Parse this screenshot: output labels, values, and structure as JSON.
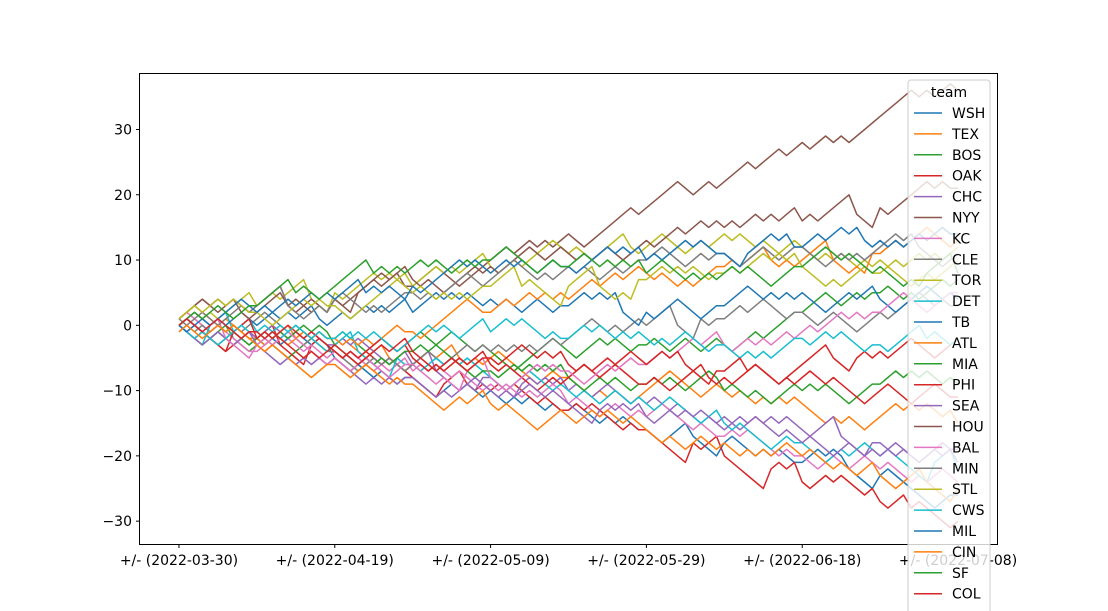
{
  "chart_data": {
    "type": "line",
    "title": "",
    "xlabel": "",
    "ylabel": "",
    "x_tick_labels": [
      "+/- (2022-03-30)",
      "+/- (2022-04-19)",
      "+/- (2022-05-09)",
      "+/- (2022-05-29)",
      "+/- (2022-06-18)",
      "+/- (2022-07-08)"
    ],
    "x_tick_days": [
      0,
      20,
      40,
      60,
      80,
      100
    ],
    "y_ticks": [
      -30,
      -20,
      -10,
      0,
      10,
      20,
      30
    ],
    "ylim": [
      -33.5,
      38.5
    ],
    "xlim": [
      -5,
      105
    ],
    "grid": false,
    "legend": {
      "title": "team",
      "placement": "upper right, extending below plot"
    },
    "colors": [
      "#1f77b4",
      "#ff7f0e",
      "#2ca02c",
      "#d62728",
      "#9467bd",
      "#8c564b",
      "#e377c2",
      "#7f7f7f",
      "#bcbd22",
      "#17becf"
    ],
    "series": [
      {
        "name": "WSH",
        "points": [
          [
            0,
            0
          ],
          [
            10,
            -2
          ],
          [
            20,
            -5
          ],
          [
            30,
            -8
          ],
          [
            40,
            -10
          ],
          [
            50,
            -13
          ],
          [
            60,
            -16
          ],
          [
            70,
            -18
          ],
          [
            80,
            -21
          ],
          [
            90,
            -23
          ],
          [
            100,
            -26
          ]
        ]
      },
      {
        "name": "TEX",
        "points": [
          [
            0,
            1
          ],
          [
            10,
            -2
          ],
          [
            20,
            -3
          ],
          [
            30,
            -6
          ],
          [
            40,
            -5
          ],
          [
            50,
            -8
          ],
          [
            60,
            -10
          ],
          [
            70,
            -10
          ],
          [
            80,
            -12
          ],
          [
            90,
            -14
          ],
          [
            100,
            -15
          ]
        ]
      },
      {
        "name": "BOS",
        "points": [
          [
            0,
            0
          ],
          [
            10,
            -3
          ],
          [
            20,
            -2
          ],
          [
            30,
            -2
          ],
          [
            40,
            -4
          ],
          [
            50,
            -4
          ],
          [
            60,
            -3
          ],
          [
            70,
            -3
          ],
          [
            80,
            2
          ],
          [
            90,
            5
          ],
          [
            100,
            7
          ]
        ]
      },
      {
        "name": "OAK",
        "points": [
          [
            0,
            0
          ],
          [
            10,
            -2
          ],
          [
            20,
            -4
          ],
          [
            30,
            -8
          ],
          [
            40,
            -10
          ],
          [
            50,
            -13
          ],
          [
            60,
            -16
          ],
          [
            70,
            -20
          ],
          [
            80,
            -24
          ],
          [
            90,
            -27
          ],
          [
            100,
            -30
          ]
        ]
      },
      {
        "name": "CHC",
        "points": [
          [
            0,
            0
          ],
          [
            10,
            -2
          ],
          [
            20,
            -3
          ],
          [
            30,
            -6
          ],
          [
            40,
            -8
          ],
          [
            50,
            -10
          ],
          [
            60,
            -12
          ],
          [
            70,
            -14
          ],
          [
            80,
            -16
          ],
          [
            90,
            -18
          ],
          [
            100,
            -19
          ]
        ]
      },
      {
        "name": "NYY",
        "points": [
          [
            0,
            1
          ],
          [
            10,
            3
          ],
          [
            20,
            4
          ],
          [
            30,
            6
          ],
          [
            40,
            10
          ],
          [
            50,
            14
          ],
          [
            60,
            18
          ],
          [
            70,
            22
          ],
          [
            80,
            28
          ],
          [
            90,
            32
          ],
          [
            100,
            36
          ]
        ]
      },
      {
        "name": "KC",
        "points": [
          [
            0,
            1
          ],
          [
            10,
            -4
          ],
          [
            20,
            -4
          ],
          [
            30,
            -7
          ],
          [
            40,
            -9
          ],
          [
            50,
            -12
          ],
          [
            60,
            -14
          ],
          [
            70,
            -17
          ],
          [
            80,
            -20
          ],
          [
            90,
            -22
          ],
          [
            100,
            -24
          ]
        ]
      },
      {
        "name": "CLE",
        "points": [
          [
            0,
            -1
          ],
          [
            10,
            1
          ],
          [
            20,
            -4
          ],
          [
            30,
            -6
          ],
          [
            40,
            -4
          ],
          [
            50,
            -2
          ],
          [
            60,
            0
          ],
          [
            70,
            1
          ],
          [
            80,
            2
          ],
          [
            90,
            2
          ],
          [
            100,
            3
          ]
        ]
      },
      {
        "name": "TOR",
        "points": [
          [
            0,
            0
          ],
          [
            10,
            3
          ],
          [
            20,
            5
          ],
          [
            30,
            6
          ],
          [
            40,
            9
          ],
          [
            50,
            11
          ],
          [
            60,
            12
          ],
          [
            70,
            14
          ],
          [
            80,
            12
          ],
          [
            90,
            10
          ],
          [
            100,
            12
          ]
        ]
      },
      {
        "name": "DET",
        "points": [
          [
            0,
            0
          ],
          [
            10,
            -1
          ],
          [
            20,
            -3
          ],
          [
            30,
            -6
          ],
          [
            40,
            -8
          ],
          [
            50,
            -10
          ],
          [
            60,
            -12
          ],
          [
            70,
            -15
          ],
          [
            80,
            -18
          ],
          [
            90,
            -20
          ],
          [
            100,
            -22
          ]
        ]
      },
      {
        "name": "TB",
        "points": [
          [
            0,
            0
          ],
          [
            10,
            0
          ],
          [
            20,
            1
          ],
          [
            30,
            2
          ],
          [
            40,
            4
          ],
          [
            50,
            3
          ],
          [
            60,
            2
          ],
          [
            70,
            3
          ],
          [
            80,
            5
          ],
          [
            90,
            4
          ],
          [
            100,
            4
          ]
        ]
      },
      {
        "name": "ATL",
        "points": [
          [
            0,
            1
          ],
          [
            10,
            -3
          ],
          [
            20,
            -2
          ],
          [
            30,
            -1
          ],
          [
            40,
            2
          ],
          [
            50,
            4
          ],
          [
            60,
            8
          ],
          [
            70,
            9
          ],
          [
            80,
            10
          ],
          [
            90,
            11
          ],
          [
            100,
            13
          ]
        ]
      },
      {
        "name": "MIA",
        "points": [
          [
            0,
            0
          ],
          [
            10,
            -2
          ],
          [
            20,
            -3
          ],
          [
            30,
            -4
          ],
          [
            40,
            -7
          ],
          [
            50,
            -8
          ],
          [
            60,
            -9
          ],
          [
            70,
            -10
          ],
          [
            80,
            -10
          ],
          [
            90,
            -9
          ],
          [
            100,
            -9
          ]
        ]
      },
      {
        "name": "PHI",
        "points": [
          [
            0,
            0
          ],
          [
            10,
            -2
          ],
          [
            20,
            -4
          ],
          [
            30,
            -5
          ],
          [
            40,
            -6
          ],
          [
            50,
            -8
          ],
          [
            60,
            -9
          ],
          [
            70,
            -8
          ],
          [
            80,
            -6
          ],
          [
            90,
            -4
          ],
          [
            100,
            -2
          ]
        ]
      },
      {
        "name": "SEA",
        "points": [
          [
            0,
            0
          ],
          [
            10,
            -3
          ],
          [
            20,
            -5
          ],
          [
            30,
            -8
          ],
          [
            40,
            -10
          ],
          [
            50,
            -12
          ],
          [
            60,
            -14
          ],
          [
            70,
            -16
          ],
          [
            80,
            -18
          ],
          [
            90,
            -20
          ],
          [
            100,
            -21
          ]
        ]
      },
      {
        "name": "HOU",
        "points": [
          [
            0,
            1
          ],
          [
            10,
            2
          ],
          [
            20,
            4
          ],
          [
            30,
            7
          ],
          [
            40,
            9
          ],
          [
            50,
            11
          ],
          [
            60,
            13
          ],
          [
            70,
            15
          ],
          [
            80,
            16
          ],
          [
            90,
            18
          ],
          [
            100,
            21
          ]
        ]
      },
      {
        "name": "BAL",
        "points": [
          [
            0,
            0
          ],
          [
            10,
            -3
          ],
          [
            20,
            -5
          ],
          [
            30,
            -6
          ],
          [
            40,
            -8
          ],
          [
            50,
            -7
          ],
          [
            60,
            -6
          ],
          [
            70,
            -3
          ],
          [
            80,
            -1
          ],
          [
            90,
            2
          ],
          [
            100,
            5
          ]
        ]
      },
      {
        "name": "MIN",
        "points": [
          [
            0,
            1
          ],
          [
            10,
            3
          ],
          [
            20,
            4
          ],
          [
            30,
            5
          ],
          [
            40,
            7
          ],
          [
            50,
            9
          ],
          [
            60,
            10
          ],
          [
            70,
            11
          ],
          [
            80,
            12
          ],
          [
            90,
            12
          ],
          [
            100,
            11
          ]
        ]
      },
      {
        "name": "STL",
        "points": [
          [
            0,
            1
          ],
          [
            10,
            2
          ],
          [
            20,
            3
          ],
          [
            30,
            5
          ],
          [
            40,
            6
          ],
          [
            50,
            6
          ],
          [
            60,
            7
          ],
          [
            70,
            8
          ],
          [
            80,
            9
          ],
          [
            90,
            8
          ],
          [
            100,
            10
          ]
        ]
      },
      {
        "name": "CWS",
        "points": [
          [
            0,
            0
          ],
          [
            10,
            -1
          ],
          [
            20,
            -2
          ],
          [
            30,
            -2
          ],
          [
            40,
            -1
          ],
          [
            50,
            -2
          ],
          [
            60,
            -2
          ],
          [
            70,
            -3
          ],
          [
            80,
            -2
          ],
          [
            90,
            -3
          ],
          [
            100,
            -2
          ]
        ]
      },
      {
        "name": "MIL",
        "points": [
          [
            0,
            0
          ],
          [
            10,
            2
          ],
          [
            20,
            4
          ],
          [
            30,
            6
          ],
          [
            40,
            8
          ],
          [
            50,
            9
          ],
          [
            60,
            10
          ],
          [
            70,
            11
          ],
          [
            80,
            12
          ],
          [
            90,
            13
          ],
          [
            100,
            14
          ]
        ]
      },
      {
        "name": "CIN",
        "points": [
          [
            0,
            -1
          ],
          [
            10,
            -3
          ],
          [
            20,
            -6
          ],
          [
            30,
            -9
          ],
          [
            40,
            -12
          ],
          [
            50,
            -14
          ],
          [
            60,
            -16
          ],
          [
            70,
            -18
          ],
          [
            80,
            -20
          ],
          [
            90,
            -23
          ],
          [
            100,
            -25
          ]
        ]
      },
      {
        "name": "SF",
        "points": [
          [
            0,
            0
          ],
          [
            10,
            3
          ],
          [
            20,
            6
          ],
          [
            30,
            9
          ],
          [
            40,
            10
          ],
          [
            50,
            9
          ],
          [
            60,
            8
          ],
          [
            70,
            8
          ],
          [
            80,
            9
          ],
          [
            90,
            9
          ],
          [
            100,
            8
          ]
        ]
      },
      {
        "name": "COL",
        "points": [
          [
            0,
            0
          ],
          [
            10,
            -1
          ],
          [
            20,
            -3
          ],
          [
            30,
            -4
          ],
          [
            40,
            -5
          ],
          [
            50,
            -6
          ],
          [
            60,
            -6
          ],
          [
            70,
            -7
          ],
          [
            80,
            -8
          ],
          [
            90,
            -10
          ],
          [
            100,
            -11
          ]
        ]
      }
    ]
  }
}
